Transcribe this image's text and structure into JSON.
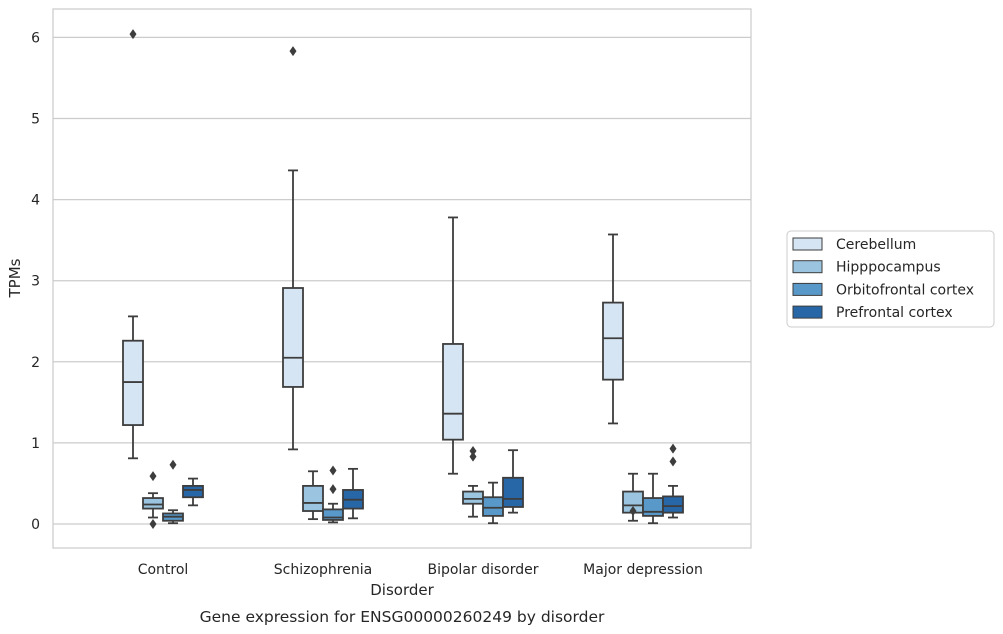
{
  "chart_data": {
    "type": "box",
    "title": "Gene expression for ENSG00000260249 by disorder",
    "xlabel": "Disorder",
    "ylabel": "TPMs",
    "ylim": [
      -0.3,
      6.35
    ],
    "yticks": [
      0,
      1,
      2,
      3,
      4,
      5,
      6
    ],
    "grid": "horizontal",
    "legend_position": "right",
    "categories": [
      "Control",
      "Schizophrenia",
      "Bipolar disorder",
      "Major depression"
    ],
    "series": [
      {
        "name": "Cerebellum",
        "color": "#d6e5f3",
        "boxes": [
          {
            "whisker_low": 0.81,
            "q1": 1.22,
            "median": 1.75,
            "q3": 2.26,
            "whisker_high": 2.56,
            "outliers": [
              6.04
            ]
          },
          {
            "whisker_low": 0.92,
            "q1": 1.69,
            "median": 2.05,
            "q3": 2.91,
            "whisker_high": 4.36,
            "outliers": [
              5.83
            ]
          },
          {
            "whisker_low": 0.62,
            "q1": 1.04,
            "median": 1.36,
            "q3": 2.22,
            "whisker_high": 3.78,
            "outliers": []
          },
          {
            "whisker_low": 1.24,
            "q1": 1.78,
            "median": 2.29,
            "q3": 2.73,
            "whisker_high": 3.57,
            "outliers": []
          }
        ]
      },
      {
        "name": "Hipppocampus",
        "color": "#9ac4df",
        "boxes": [
          {
            "whisker_low": 0.08,
            "q1": 0.19,
            "median": 0.24,
            "q3": 0.32,
            "whisker_high": 0.38,
            "outliers": [
              0.59,
              0.0
            ]
          },
          {
            "whisker_low": 0.06,
            "q1": 0.16,
            "median": 0.26,
            "q3": 0.47,
            "whisker_high": 0.65,
            "outliers": []
          },
          {
            "whisker_low": 0.09,
            "q1": 0.25,
            "median": 0.31,
            "q3": 0.4,
            "whisker_high": 0.47,
            "outliers": [
              0.9,
              0.83
            ]
          },
          {
            "whisker_low": 0.04,
            "q1": 0.14,
            "median": 0.23,
            "q3": 0.4,
            "whisker_high": 0.62,
            "outliers": [
              0.16
            ]
          }
        ]
      },
      {
        "name": "Orbitofrontal cortex",
        "color": "#5899c9",
        "boxes": [
          {
            "whisker_low": 0.01,
            "q1": 0.04,
            "median": 0.09,
            "q3": 0.13,
            "whisker_high": 0.17,
            "outliers": [
              0.73
            ]
          },
          {
            "whisker_low": 0.02,
            "q1": 0.05,
            "median": 0.08,
            "q3": 0.18,
            "whisker_high": 0.25,
            "outliers": [
              0.66,
              0.43
            ]
          },
          {
            "whisker_low": 0.01,
            "q1": 0.1,
            "median": 0.2,
            "q3": 0.33,
            "whisker_high": 0.51,
            "outliers": []
          },
          {
            "whisker_low": 0.01,
            "q1": 0.1,
            "median": 0.15,
            "q3": 0.32,
            "whisker_high": 0.62,
            "outliers": []
          }
        ]
      },
      {
        "name": "Prefrontal cortex",
        "color": "#2767a8",
        "boxes": [
          {
            "whisker_low": 0.23,
            "q1": 0.33,
            "median": 0.42,
            "q3": 0.47,
            "whisker_high": 0.56,
            "outliers": []
          },
          {
            "whisker_low": 0.07,
            "q1": 0.19,
            "median": 0.3,
            "q3": 0.42,
            "whisker_high": 0.68,
            "outliers": []
          },
          {
            "whisker_low": 0.14,
            "q1": 0.21,
            "median": 0.31,
            "q3": 0.57,
            "whisker_high": 0.91,
            "outliers": []
          },
          {
            "whisker_low": 0.08,
            "q1": 0.14,
            "median": 0.22,
            "q3": 0.34,
            "whisker_high": 0.47,
            "outliers": [
              0.93,
              0.77
            ]
          }
        ]
      }
    ]
  }
}
